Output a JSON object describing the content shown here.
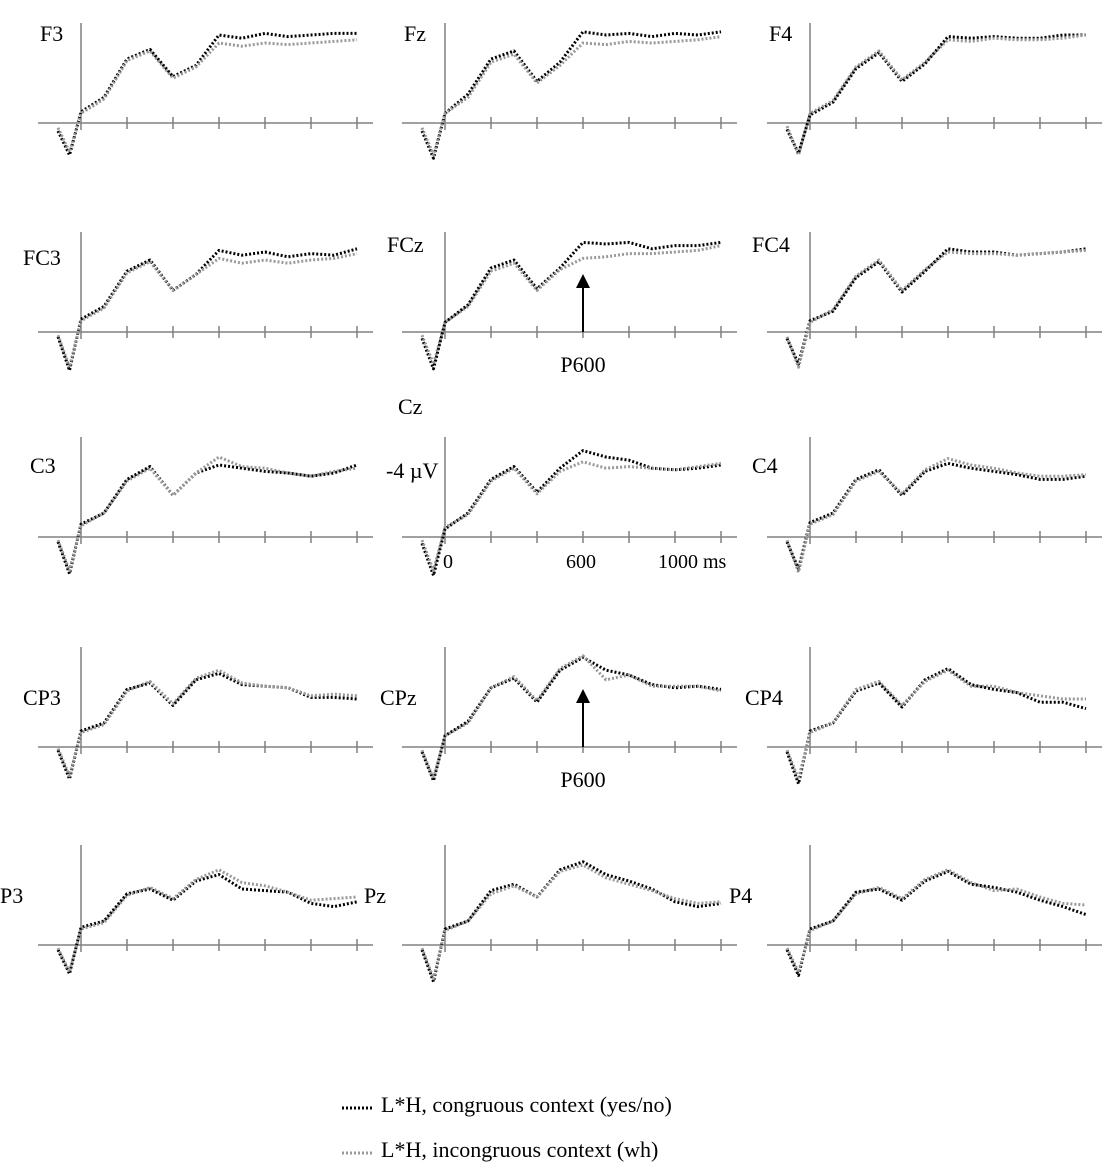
{
  "chart_data": {
    "type": "line",
    "description_units": {
      "y_unit": "µV",
      "x_unit": "ms"
    },
    "x": [
      -100,
      -50,
      0,
      100,
      200,
      300,
      400,
      500,
      600,
      700,
      800,
      900,
      1000,
      1100,
      1200
    ],
    "scale_labels": {
      "electrode": "Cz",
      "amplitude": "-4 µV",
      "t0": "0",
      "t600": "600",
      "t1000": "1000 ms"
    },
    "annotations": [
      {
        "text": "P600",
        "electrode": "FCz",
        "x": 600
      },
      {
        "text": "P600",
        "electrode": "CPz",
        "x": 600
      }
    ],
    "legend": [
      {
        "label": "L*H, congruous context (yes/no)",
        "color": "#000000"
      },
      {
        "label": "L*H, incongruous context (wh)",
        "color": "#999999"
      }
    ],
    "panels": [
      {
        "electrode": "F3",
        "series": [
          {
            "values": [
              -0.5,
              -2.0,
              0.7,
              1.6,
              4.0,
              4.6,
              2.9,
              3.6,
              5.5,
              5.3,
              5.6,
              5.4,
              5.5,
              5.6,
              5.6
            ]
          },
          {
            "values": [
              -0.3,
              -1.8,
              0.6,
              1.5,
              3.9,
              4.5,
              2.8,
              3.5,
              5.0,
              4.8,
              5.0,
              4.9,
              5.0,
              5.1,
              5.2
            ]
          }
        ]
      },
      {
        "electrode": "Fz",
        "series": [
          {
            "values": [
              -0.5,
              -2.2,
              0.6,
              1.8,
              4.0,
              4.5,
              2.6,
              3.8,
              5.7,
              5.5,
              5.6,
              5.4,
              5.6,
              5.5,
              5.7
            ]
          },
          {
            "values": [
              -0.3,
              -2.0,
              0.6,
              1.6,
              3.8,
              4.3,
              2.5,
              3.6,
              5.0,
              4.9,
              5.1,
              5.0,
              5.1,
              5.2,
              5.4
            ]
          }
        ]
      },
      {
        "electrode": "F4",
        "series": [
          {
            "values": [
              -0.4,
              -1.9,
              0.5,
              1.3,
              3.4,
              4.4,
              2.6,
              3.7,
              5.4,
              5.3,
              5.4,
              5.3,
              5.3,
              5.5,
              5.5
            ]
          },
          {
            "values": [
              -0.2,
              -2.0,
              0.6,
              1.4,
              3.5,
              4.5,
              2.7,
              3.8,
              5.2,
              5.1,
              5.3,
              5.2,
              5.2,
              5.3,
              5.5
            ]
          }
        ]
      },
      {
        "electrode": "FC3",
        "series": [
          {
            "values": [
              -0.3,
              -2.4,
              0.8,
              1.6,
              3.8,
              4.5,
              2.6,
              3.6,
              5.1,
              4.8,
              5.0,
              4.7,
              4.9,
              4.8,
              5.2
            ]
          },
          {
            "values": [
              -0.2,
              -2.2,
              0.7,
              1.5,
              3.7,
              4.4,
              2.6,
              3.6,
              4.6,
              4.3,
              4.5,
              4.3,
              4.5,
              4.6,
              4.9
            ]
          }
        ]
      },
      {
        "electrode": "FCz",
        "series": [
          {
            "values": [
              -0.4,
              -2.3,
              0.6,
              1.7,
              4.0,
              4.5,
              2.7,
              4.0,
              5.6,
              5.5,
              5.6,
              5.2,
              5.4,
              5.4,
              5.6
            ]
          },
          {
            "values": [
              -0.2,
              -2.0,
              0.6,
              1.6,
              3.8,
              4.3,
              2.6,
              3.9,
              4.6,
              4.7,
              4.9,
              4.9,
              5.0,
              5.1,
              5.4
            ]
          }
        ]
      },
      {
        "electrode": "FC4",
        "series": [
          {
            "values": [
              -0.4,
              -2.0,
              0.7,
              1.3,
              3.4,
              4.4,
              2.5,
              3.8,
              5.2,
              5.0,
              5.0,
              4.8,
              4.9,
              5.0,
              5.2
            ]
          },
          {
            "values": [
              -0.3,
              -2.2,
              0.6,
              1.4,
              3.5,
              4.5,
              2.6,
              3.9,
              5.0,
              4.9,
              4.9,
              4.8,
              4.9,
              5.0,
              5.1
            ]
          }
        ]
      },
      {
        "electrode": "C3",
        "series": [
          {
            "values": [
              -0.3,
              -2.3,
              0.8,
              1.5,
              3.6,
              4.4,
              2.6,
              4.0,
              4.5,
              4.3,
              4.1,
              4.0,
              3.8,
              4.0,
              4.5
            ]
          },
          {
            "values": [
              -0.2,
              -2.1,
              0.7,
              1.5,
              3.5,
              4.3,
              2.6,
              4.0,
              5.0,
              4.4,
              4.3,
              4.0,
              3.8,
              4.1,
              4.3
            ]
          }
        ]
      },
      {
        "electrode": "Cz",
        "series": [
          {
            "values": [
              -0.4,
              -2.4,
              0.5,
              1.5,
              3.6,
              4.4,
              2.8,
              4.3,
              5.4,
              5.0,
              4.8,
              4.3,
              4.2,
              4.3,
              4.5
            ]
          },
          {
            "values": [
              -0.2,
              -2.1,
              0.6,
              1.4,
              3.5,
              4.3,
              2.7,
              4.1,
              4.7,
              4.3,
              4.4,
              4.3,
              4.2,
              4.4,
              4.6
            ]
          }
        ]
      },
      {
        "electrode": "C4",
        "series": [
          {
            "values": [
              -0.3,
              -2.0,
              0.9,
              1.5,
              3.6,
              4.2,
              2.6,
              4.1,
              4.6,
              4.3,
              4.1,
              3.9,
              3.6,
              3.6,
              3.8
            ]
          },
          {
            "values": [
              -0.2,
              -2.2,
              0.8,
              1.4,
              3.5,
              4.1,
              2.7,
              4.2,
              4.9,
              4.5,
              4.3,
              4.0,
              3.8,
              3.8,
              3.9
            ]
          }
        ]
      },
      {
        "electrode": "CP3",
        "series": [
          {
            "values": [
              -0.2,
              -2.0,
              1.0,
              1.5,
              3.6,
              4.0,
              2.6,
              4.2,
              4.6,
              3.9,
              3.8,
              3.7,
              3.1,
              3.1,
              3.0
            ]
          },
          {
            "values": [
              -0.1,
              -1.8,
              0.9,
              1.4,
              3.5,
              4.1,
              2.7,
              4.3,
              4.8,
              4.0,
              3.8,
              3.7,
              3.2,
              3.3,
              3.2
            ]
          }
        ]
      },
      {
        "electrode": "CPz",
        "series": [
          {
            "values": [
              -0.3,
              -2.1,
              0.7,
              1.6,
              3.7,
              4.3,
              2.8,
              4.8,
              5.6,
              4.8,
              4.5,
              3.9,
              3.7,
              3.8,
              3.6
            ]
          },
          {
            "values": [
              -0.2,
              -2.0,
              0.7,
              1.5,
              3.7,
              4.4,
              2.9,
              4.9,
              5.7,
              4.2,
              4.5,
              3.8,
              3.8,
              3.8,
              3.5
            ]
          }
        ]
      },
      {
        "electrode": "CP4",
        "series": [
          {
            "values": [
              -0.3,
              -2.3,
              1.0,
              1.5,
              3.5,
              4.0,
              2.5,
              4.2,
              4.9,
              3.9,
              3.6,
              3.4,
              2.8,
              2.8,
              2.4
            ]
          },
          {
            "values": [
              -0.2,
              -2.0,
              0.9,
              1.5,
              3.6,
              4.1,
              2.6,
              4.1,
              4.8,
              3.8,
              3.8,
              3.4,
              3.2,
              3.0,
              3.0
            ]
          }
        ]
      },
      {
        "electrode": "P3",
        "series": [
          {
            "values": [
              -0.3,
              -1.8,
              1.1,
              1.5,
              3.2,
              3.5,
              2.8,
              4.0,
              4.4,
              3.5,
              3.4,
              3.3,
              2.6,
              2.4,
              2.7
            ]
          },
          {
            "values": [
              -0.2,
              -1.7,
              1.0,
              1.4,
              3.1,
              3.6,
              2.9,
              4.1,
              4.7,
              3.9,
              3.7,
              3.3,
              2.8,
              2.9,
              3.0
            ]
          }
        ]
      },
      {
        "electrode": "Pz",
        "series": [
          {
            "values": [
              -0.3,
              -2.3,
              1.0,
              1.5,
              3.4,
              3.8,
              3.0,
              4.7,
              5.2,
              4.4,
              4.0,
              3.5,
              2.7,
              2.4,
              2.6
            ]
          },
          {
            "values": [
              -0.2,
              -2.1,
              0.9,
              1.5,
              3.2,
              3.7,
              3.0,
              4.6,
              5.0,
              4.2,
              3.8,
              3.4,
              2.9,
              2.6,
              2.7
            ]
          }
        ]
      },
      {
        "electrode": "P4",
        "series": [
          {
            "values": [
              -0.3,
              -1.9,
              1.0,
              1.5,
              3.3,
              3.5,
              2.8,
              4.0,
              4.6,
              3.8,
              3.6,
              3.3,
              2.8,
              2.4,
              1.9
            ]
          },
          {
            "values": [
              -0.2,
              -1.7,
              0.9,
              1.5,
              3.2,
              3.6,
              2.9,
              4.1,
              4.7,
              3.9,
              3.4,
              3.5,
              3.0,
              2.6,
              2.5
            ]
          }
        ]
      }
    ]
  }
}
